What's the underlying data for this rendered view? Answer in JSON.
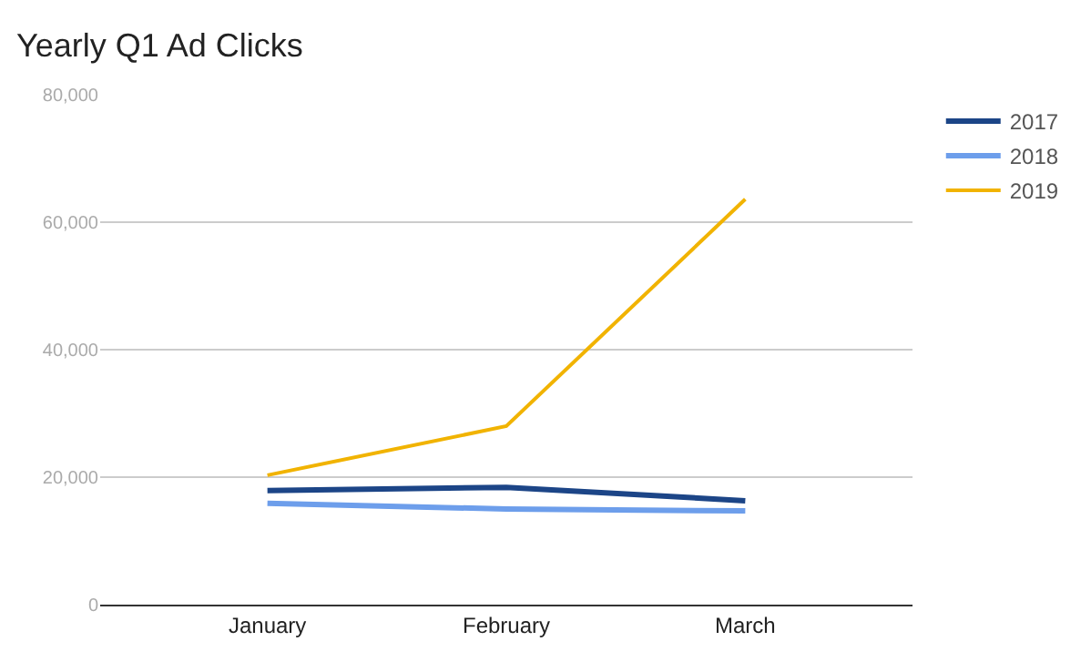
{
  "chart_data": {
    "type": "line",
    "title": "Yearly Q1 Ad Clicks",
    "categories": [
      "January",
      "February",
      "March"
    ],
    "series": [
      {
        "name": "2017",
        "color": "#1c4587",
        "values": [
          17900,
          18400,
          16300
        ]
      },
      {
        "name": "2018",
        "color": "#6d9eeb",
        "values": [
          15900,
          15000,
          14700
        ]
      },
      {
        "name": "2019",
        "color": "#f1b300",
        "values": [
          20300,
          28000,
          63600
        ]
      }
    ],
    "ylim": [
      0,
      80000
    ],
    "yticks": [
      {
        "value": 0,
        "label": "0"
      },
      {
        "value": 20000,
        "label": "20,000"
      },
      {
        "value": 40000,
        "label": "40,000"
      },
      {
        "value": 60000,
        "label": "60,000"
      },
      {
        "value": 80000,
        "label": "80,000"
      }
    ],
    "grid": "y",
    "legend": "right",
    "marker": "none",
    "line_style": "solid"
  }
}
